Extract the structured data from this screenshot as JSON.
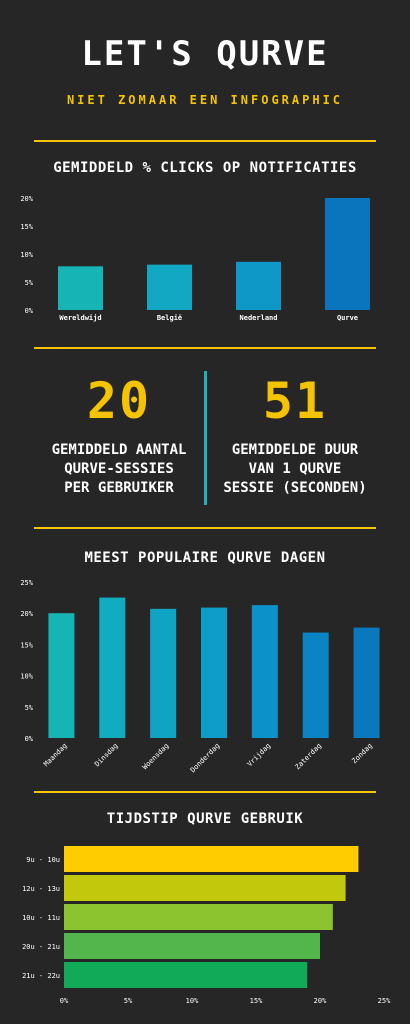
{
  "header": {
    "title": "LET'S QURVE",
    "subtitle": "NIET ZOMAAR EEN INFOGRAPHIC"
  },
  "colors": {
    "background": "#262626",
    "accent": "#f5c400",
    "divider_vertical": "#1fb2b8"
  },
  "stats": [
    {
      "value": "20",
      "label_lines": [
        "GEMIDDELD AANTAL",
        "QURVE-SESSIES",
        "PER GEBRUIKER"
      ]
    },
    {
      "value": "51",
      "label_lines": [
        "GEMIDDELDE DUUR",
        "VAN 1 QURVE",
        "SESSIE (SECONDEN)"
      ]
    }
  ],
  "chart_data": [
    {
      "type": "bar",
      "title": "GEMIDDELD % CLICKS OP NOTIFICATIES",
      "categories": [
        "Wereldwijd",
        "België",
        "Nederland",
        "Qurve"
      ],
      "values": [
        7.8,
        8.1,
        8.6,
        20
      ],
      "ylim": [
        0,
        20
      ],
      "yticks": [
        "0%",
        "5%",
        "10%",
        "15%",
        "20%"
      ],
      "colors": [
        "#16b4b4",
        "#12a8c4",
        "#0e98c8",
        "#0a74bc"
      ],
      "grid": false
    },
    {
      "type": "bar",
      "title": "MEEST POPULAIRE QURVE DAGEN",
      "categories": [
        "Maandag",
        "Dinsdag",
        "Woensdag",
        "Donderdag",
        "Vrijdag",
        "Zaterdag",
        "Zondag"
      ],
      "values": [
        20,
        22.5,
        20.7,
        20.9,
        21.3,
        16.9,
        17.7
      ],
      "ylim": [
        0,
        25
      ],
      "yticks": [
        "0%",
        "5%",
        "10%",
        "15%",
        "20%",
        "25%"
      ],
      "colors": [
        "#16b4b4",
        "#12acc0",
        "#10a4c4",
        "#0e9cc8",
        "#0c92c8",
        "#0a84c4",
        "#0a78bc"
      ],
      "grid": false
    },
    {
      "type": "bar",
      "orientation": "horizontal",
      "title": "TIJDSTIP QURVE GEBRUIK",
      "categories": [
        "9u - 10u",
        "12u - 13u",
        "10u - 11u",
        "20u - 21u",
        "21u - 22u"
      ],
      "values": [
        23,
        22,
        21,
        20,
        19
      ],
      "xlim": [
        0,
        25
      ],
      "xticks": [
        "0%",
        "5%",
        "10%",
        "15%",
        "20%",
        "25%"
      ],
      "colors": [
        "#ffcc00",
        "#c2c80c",
        "#8cc430",
        "#52b64c",
        "#10aa58"
      ],
      "grid": false
    }
  ]
}
